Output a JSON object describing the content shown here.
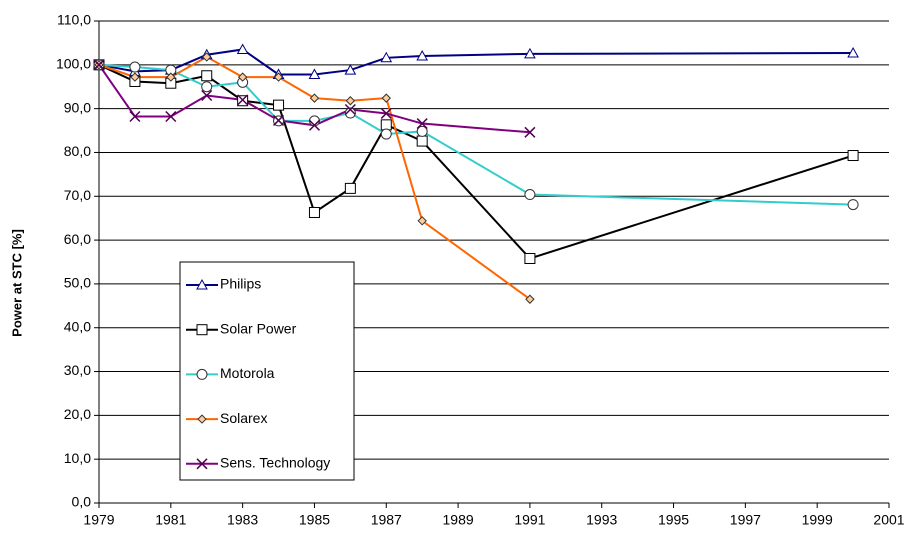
{
  "chart_data": {
    "type": "line",
    "y_label": "Power at STC [%]",
    "xlim": [
      1979,
      2001
    ],
    "xticks": [
      1979,
      1981,
      1983,
      1985,
      1987,
      1989,
      1991,
      1993,
      1995,
      1997,
      1999,
      2001
    ],
    "ylim": [
      0,
      110
    ],
    "yticks": [
      {
        "value": 0,
        "label": "0,0"
      },
      {
        "value": 10,
        "label": "10,0"
      },
      {
        "value": 20,
        "label": "20,0"
      },
      {
        "value": 30,
        "label": "30,0"
      },
      {
        "value": 40,
        "label": "40,0"
      },
      {
        "value": 50,
        "label": "50,0"
      },
      {
        "value": 60,
        "label": "60,0"
      },
      {
        "value": 70,
        "label": "70,0"
      },
      {
        "value": 80,
        "label": "80,0"
      },
      {
        "value": 90,
        "label": "90,0"
      },
      {
        "value": 100,
        "label": "100,0"
      },
      {
        "value": 110,
        "label": "110,0"
      }
    ],
    "grid": true,
    "legend": "lower left",
    "series": [
      {
        "name": "Philips",
        "color": "#000080",
        "marker": "triangle",
        "marker_color": "#000080",
        "x": [
          1979,
          1980,
          1981,
          1982,
          1983,
          1984,
          1985,
          1986,
          1987,
          1988,
          1991,
          2000
        ],
        "values": [
          100,
          98.5,
          98.8,
          102.3,
          103.5,
          97.8,
          97.8,
          98.8,
          101.6,
          102,
          102.5,
          102.7
        ]
      },
      {
        "name": "Solar Power",
        "color": "#000000",
        "marker": "square",
        "marker_color": "#000000",
        "x": [
          1979,
          1980,
          1981,
          1982,
          1983,
          1984,
          1985,
          1986,
          1987,
          1988,
          1991,
          2000
        ],
        "values": [
          100,
          96.2,
          95.8,
          97.5,
          91.8,
          90.8,
          66.3,
          71.8,
          86.3,
          82.6,
          55.8,
          79.3
        ]
      },
      {
        "name": "Motorola",
        "color": "#33CCCC",
        "marker": "circle",
        "marker_color": "#333333",
        "x": [
          1979,
          1980,
          1981,
          1982,
          1983,
          1984,
          1985,
          1986,
          1987,
          1988,
          1991,
          2000
        ],
        "values": [
          100,
          99.5,
          98.8,
          95,
          96,
          87.2,
          87.2,
          89,
          84.2,
          84.8,
          70.4,
          68.1
        ]
      },
      {
        "name": "Solarex",
        "color": "#FF6600",
        "marker": "diamond",
        "marker_color": "#333333",
        "x": [
          1979,
          1980,
          1981,
          1982,
          1983,
          1984,
          1985,
          1986,
          1987,
          1988,
          1991
        ],
        "values": [
          100,
          97.2,
          97.2,
          101.8,
          97.2,
          97.2,
          92.4,
          91.8,
          92.4,
          64.4,
          46.5
        ]
      },
      {
        "name": "Sens. Technology",
        "color": "#800080",
        "marker": "x",
        "marker_color": "#500050",
        "x": [
          1979,
          1980,
          1981,
          1982,
          1983,
          1984,
          1985,
          1986,
          1987,
          1988,
          1991
        ],
        "values": [
          100,
          88.2,
          88.2,
          93,
          92,
          87.3,
          86.2,
          89.8,
          88.9,
          86.6,
          84.6
        ]
      }
    ]
  }
}
